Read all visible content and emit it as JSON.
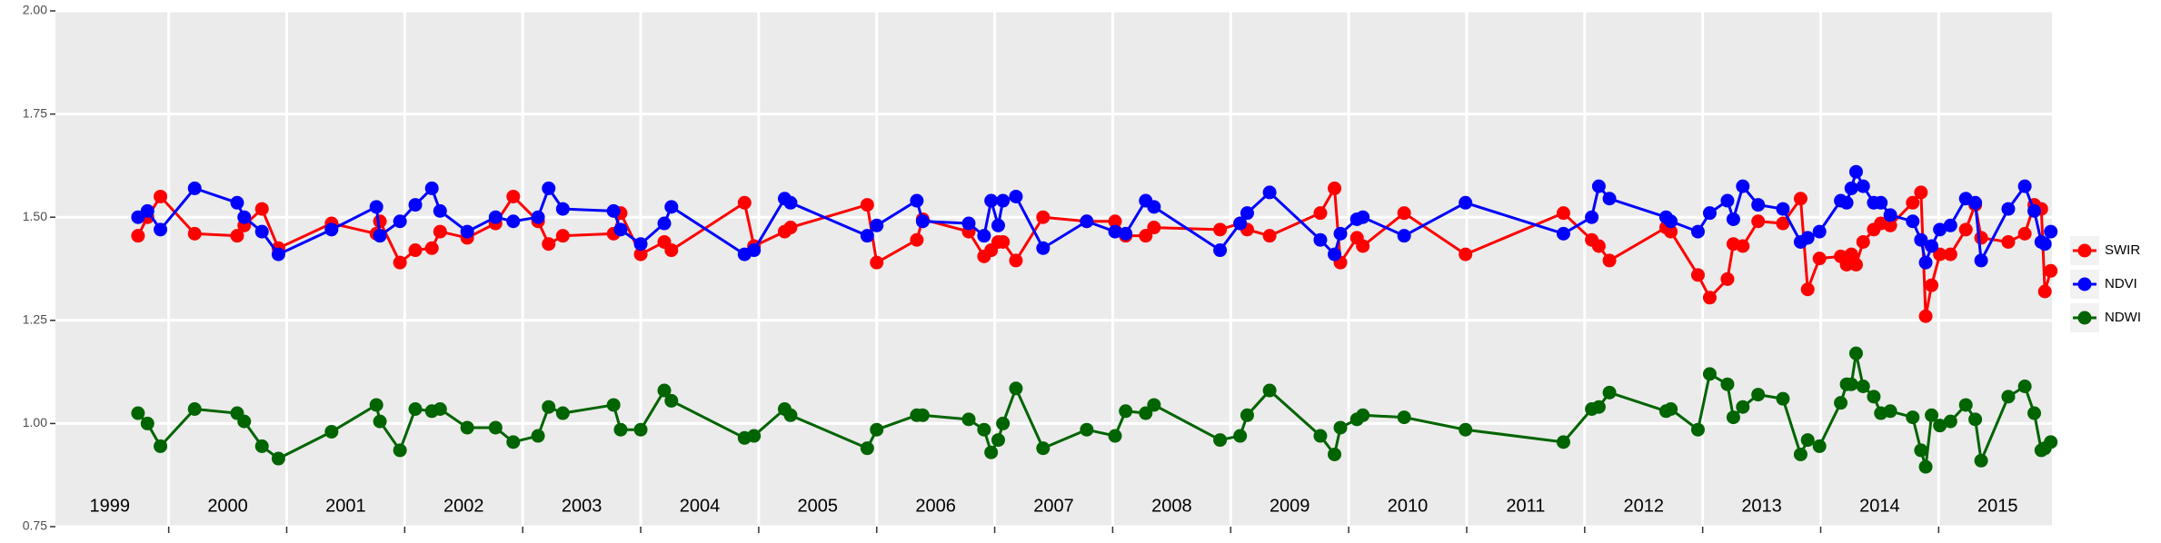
{
  "chart_data": {
    "type": "line",
    "x": [
      1999.74,
      1999.82,
      1999.93,
      2000.22,
      2000.58,
      2000.64,
      2000.79,
      2000.93,
      2001.38,
      2001.76,
      2001.79,
      2001.96,
      2002.09,
      2002.23,
      2002.3,
      2002.53,
      2002.77,
      2002.92,
      2003.13,
      2003.22,
      2003.34,
      2003.77,
      2003.83,
      2004.0,
      2004.2,
      2004.26,
      2004.88,
      2004.96,
      2005.22,
      2005.27,
      2005.92,
      2006.0,
      2006.34,
      2006.39,
      2006.78,
      2006.91,
      2006.97,
      2007.03,
      2007.07,
      2007.18,
      2007.41,
      2007.78,
      2008.02,
      2008.11,
      2008.28,
      2008.35,
      2008.91,
      2009.08,
      2009.14,
      2009.33,
      2009.76,
      2009.88,
      2009.93,
      2010.07,
      2010.12,
      2010.47,
      2010.99,
      2011.82,
      2012.06,
      2012.12,
      2012.21,
      2012.69,
      2012.73,
      2012.96,
      2013.06,
      2013.21,
      2013.26,
      2013.34,
      2013.47,
      2013.68,
      2013.83,
      2013.89,
      2013.99,
      2014.17,
      2014.22,
      2014.26,
      2014.3,
      2014.36,
      2014.45,
      2014.51,
      2014.59,
      2014.78,
      2014.85,
      2014.89,
      2014.94,
      2015.01,
      2015.1,
      2015.23,
      2015.31,
      2015.36,
      2015.59,
      2015.73,
      2015.81,
      2015.87,
      2015.9,
      2015.95
    ],
    "series": [
      {
        "name": "SWIR",
        "color": "#ff0000",
        "values": [
          1.455,
          1.5,
          1.55,
          1.46,
          1.455,
          1.48,
          1.52,
          1.425,
          1.485,
          1.46,
          1.49,
          1.39,
          1.42,
          1.425,
          1.465,
          1.45,
          1.485,
          1.55,
          1.49,
          1.435,
          1.455,
          1.46,
          1.51,
          1.41,
          1.44,
          1.42,
          1.535,
          1.43,
          1.465,
          1.475,
          1.53,
          1.39,
          1.445,
          1.495,
          1.465,
          1.405,
          1.42,
          1.44,
          1.44,
          1.395,
          1.5,
          1.49,
          1.49,
          1.455,
          1.455,
          1.475,
          1.47,
          1.485,
          1.47,
          1.455,
          1.51,
          1.57,
          1.39,
          1.45,
          1.43,
          1.51,
          1.41,
          1.51,
          1.445,
          1.43,
          1.395,
          1.475,
          1.465,
          1.36,
          1.305,
          1.35,
          1.435,
          1.43,
          1.49,
          1.485,
          1.545,
          1.325,
          1.4,
          1.405,
          1.385,
          1.41,
          1.385,
          1.44,
          1.47,
          1.485,
          1.48,
          1.535,
          1.56,
          1.26,
          1.335,
          1.41,
          1.41,
          1.47,
          1.53,
          1.45,
          1.44,
          1.46,
          1.53,
          1.52,
          1.32,
          1.37
        ]
      },
      {
        "name": "NDVI",
        "color": "#0000ff",
        "values": [
          1.5,
          1.515,
          1.47,
          1.57,
          1.535,
          1.5,
          1.465,
          1.41,
          1.47,
          1.525,
          1.455,
          1.49,
          1.53,
          1.57,
          1.515,
          1.465,
          1.5,
          1.49,
          1.5,
          1.57,
          1.52,
          1.515,
          1.47,
          1.435,
          1.485,
          1.525,
          1.41,
          1.42,
          1.545,
          1.535,
          1.455,
          1.48,
          1.54,
          1.49,
          1.485,
          1.455,
          1.54,
          1.48,
          1.54,
          1.55,
          1.425,
          1.49,
          1.465,
          1.46,
          1.54,
          1.525,
          1.42,
          1.485,
          1.51,
          1.56,
          1.445,
          1.41,
          1.46,
          1.495,
          1.5,
          1.455,
          1.535,
          1.46,
          1.5,
          1.575,
          1.545,
          1.5,
          1.49,
          1.465,
          1.51,
          1.54,
          1.495,
          1.575,
          1.53,
          1.52,
          1.44,
          1.45,
          1.465,
          1.54,
          1.535,
          1.57,
          1.61,
          1.575,
          1.535,
          1.535,
          1.505,
          1.49,
          1.445,
          1.39,
          1.43,
          1.47,
          1.48,
          1.545,
          1.535,
          1.395,
          1.52,
          1.575,
          1.515,
          1.44,
          1.435,
          1.465
        ]
      },
      {
        "name": "NDWI",
        "color": "#006400",
        "values": [
          1.025,
          1.0,
          0.945,
          1.035,
          1.025,
          1.005,
          0.945,
          0.915,
          0.98,
          1.045,
          1.005,
          0.935,
          1.035,
          1.03,
          1.035,
          0.99,
          0.99,
          0.955,
          0.97,
          1.04,
          1.025,
          1.045,
          0.985,
          0.985,
          1.08,
          1.055,
          0.965,
          0.97,
          1.035,
          1.02,
          0.94,
          0.985,
          1.02,
          1.02,
          1.01,
          0.985,
          0.93,
          0.96,
          1.0,
          1.085,
          0.94,
          0.985,
          0.97,
          1.03,
          1.025,
          1.045,
          0.96,
          0.97,
          1.02,
          1.08,
          0.97,
          0.925,
          0.99,
          1.01,
          1.02,
          1.015,
          0.985,
          0.955,
          1.035,
          1.04,
          1.075,
          1.03,
          1.035,
          0.985,
          1.12,
          1.095,
          1.015,
          1.04,
          1.07,
          1.06,
          0.925,
          0.96,
          0.945,
          1.05,
          1.095,
          1.095,
          1.17,
          1.09,
          1.065,
          1.025,
          1.03,
          1.015,
          0.935,
          0.895,
          1.02,
          0.995,
          1.005,
          1.045,
          1.01,
          0.91,
          1.065,
          1.09,
          1.025,
          0.935,
          0.94,
          0.955
        ]
      }
    ],
    "xlim": [
      1999.04,
      2015.96
    ],
    "xticks": [
      {
        "value": 1999.5,
        "label": "1999"
      },
      {
        "value": 2000.5,
        "label": "2000"
      },
      {
        "value": 2001.5,
        "label": "2001"
      },
      {
        "value": 2002.5,
        "label": "2002"
      },
      {
        "value": 2003.5,
        "label": "2003"
      },
      {
        "value": 2004.5,
        "label": "2004"
      },
      {
        "value": 2005.5,
        "label": "2005"
      },
      {
        "value": 2006.5,
        "label": "2006"
      },
      {
        "value": 2007.5,
        "label": "2007"
      },
      {
        "value": 2008.5,
        "label": "2008"
      },
      {
        "value": 2009.5,
        "label": "2009"
      },
      {
        "value": 2010.5,
        "label": "2010"
      },
      {
        "value": 2011.5,
        "label": "2011"
      },
      {
        "value": 2012.5,
        "label": "2012"
      },
      {
        "value": 2013.5,
        "label": "2013"
      },
      {
        "value": 2014.5,
        "label": "2014"
      },
      {
        "value": 2015.5,
        "label": "2015"
      }
    ],
    "xgrid": [
      2000,
      2001,
      2002,
      2003,
      2004,
      2005,
      2006,
      2007,
      2008,
      2009,
      2010,
      2011,
      2012,
      2013,
      2014,
      2015
    ],
    "ylim": [
      0.75,
      2.0
    ],
    "yticks": [
      {
        "value": 0.75,
        "label": "0.75"
      },
      {
        "value": 1,
        "label": "1.00"
      },
      {
        "value": 1.25,
        "label": "1.25"
      },
      {
        "value": 1.5,
        "label": "1.50"
      },
      {
        "value": 1.75,
        "label": "1.75"
      },
      {
        "value": 2,
        "label": "2.00"
      }
    ],
    "grid": true,
    "legend": "right"
  }
}
